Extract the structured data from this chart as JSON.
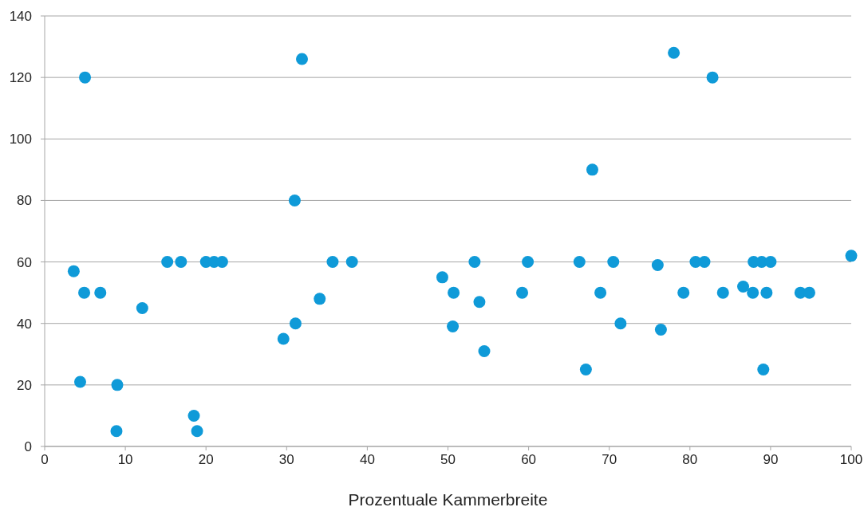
{
  "chart_data": {
    "type": "scatter",
    "xlabel": "Prozentuale Kammerbreite",
    "xlim": [
      0,
      100
    ],
    "xticks": [
      0,
      10,
      20,
      30,
      40,
      50,
      60,
      70,
      80,
      90,
      100
    ],
    "ylim": [
      0,
      140
    ],
    "yticks": [
      0,
      20,
      40,
      60,
      80,
      100,
      120,
      140
    ],
    "grid": "y",
    "marker": "circle",
    "x": [
      3.6,
      4.4,
      5.0,
      4.9,
      6.9,
      8.9,
      9.0,
      12.1,
      15.2,
      16.9,
      18.5,
      18.9,
      20.0,
      21.0,
      22.0,
      29.6,
      31.0,
      31.1,
      31.9,
      34.1,
      35.7,
      38.1,
      49.3,
      50.6,
      50.7,
      53.3,
      53.9,
      54.5,
      59.2,
      59.9,
      66.3,
      67.1,
      67.9,
      68.9,
      70.5,
      71.4,
      76.0,
      76.4,
      78.0,
      79.2,
      80.7,
      81.8,
      82.8,
      84.1,
      86.6,
      87.9,
      87.8,
      88.9,
      89.1,
      89.5,
      90.0,
      93.7,
      94.8,
      100
    ],
    "series": [
      {
        "color": "#0f9ad8",
        "values": [
          57,
          21,
          120,
          50,
          50,
          5,
          20,
          45,
          60,
          60,
          10,
          5,
          60,
          60,
          60,
          35,
          80,
          40,
          126,
          48,
          60,
          60,
          55,
          39,
          50,
          60,
          47,
          31,
          50,
          60,
          60,
          25,
          90,
          50,
          60,
          40,
          59,
          38,
          128,
          50,
          60,
          60,
          120,
          50,
          52,
          60,
          50,
          60,
          25,
          50,
          60,
          50,
          50,
          62
        ]
      }
    ]
  }
}
